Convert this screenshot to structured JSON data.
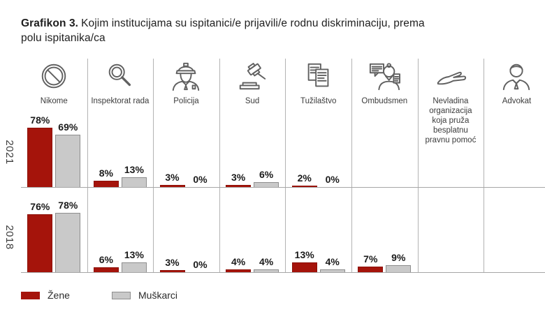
{
  "title": {
    "bold": "Grafikon 3.",
    "line1_rest": "Kojim institucijama su ispitanici/e prijavili/e rodnu diskriminaciju, prema",
    "line2": "polu ispitanika/ca"
  },
  "colors": {
    "zene": "#a5140b",
    "zene_border": "#8c1007",
    "muskarci": "#c9c9c9",
    "muskarci_border": "#8e8e8e",
    "grid_line": "#b3b3b3",
    "icon_stroke": "#606060"
  },
  "legend": {
    "items": [
      {
        "label": "Žene",
        "series": "zene"
      },
      {
        "label": "Muškarci",
        "series": "muskarci"
      }
    ]
  },
  "chart_data": {
    "type": "bar",
    "title": "Grafikon 3. Kojim institucijama su ispitanici/e prijavili/e rodnu diskriminaciju, prema polu ispitanika/ca",
    "unit": "%",
    "categories": [
      "Nikome",
      "Inspektorat rada",
      "Policija",
      "Sud",
      "Tužilaštvo",
      "Ombudsmen",
      "Nevladina organizacija koja pruža besplatnu pravnu pomoć",
      "Advokat"
    ],
    "icons": [
      "prohibition-icon",
      "magnifier-icon",
      "police-icon",
      "gavel-icon",
      "documents-icon",
      "ombudsman-icon",
      "hand-icon",
      "lawyer-icon"
    ],
    "row_groups": [
      {
        "year": "2021",
        "series": [
          {
            "name": "Žene",
            "values": [
              78,
              8,
              3,
              3,
              2,
              null,
              null,
              null
            ]
          },
          {
            "name": "Muškarci",
            "values": [
              69,
              13,
              0,
              6,
              0,
              null,
              null,
              null
            ]
          }
        ]
      },
      {
        "year": "2018",
        "series": [
          {
            "name": "Žene",
            "values": [
              76,
              6,
              3,
              4,
              13,
              7,
              null,
              null
            ]
          },
          {
            "name": "Muškarci",
            "values": [
              78,
              13,
              0,
              4,
              4,
              9,
              null,
              null
            ]
          }
        ]
      }
    ],
    "ylim": [
      0,
      92
    ],
    "grid": "column-separators",
    "legend_position": "bottom-left"
  }
}
